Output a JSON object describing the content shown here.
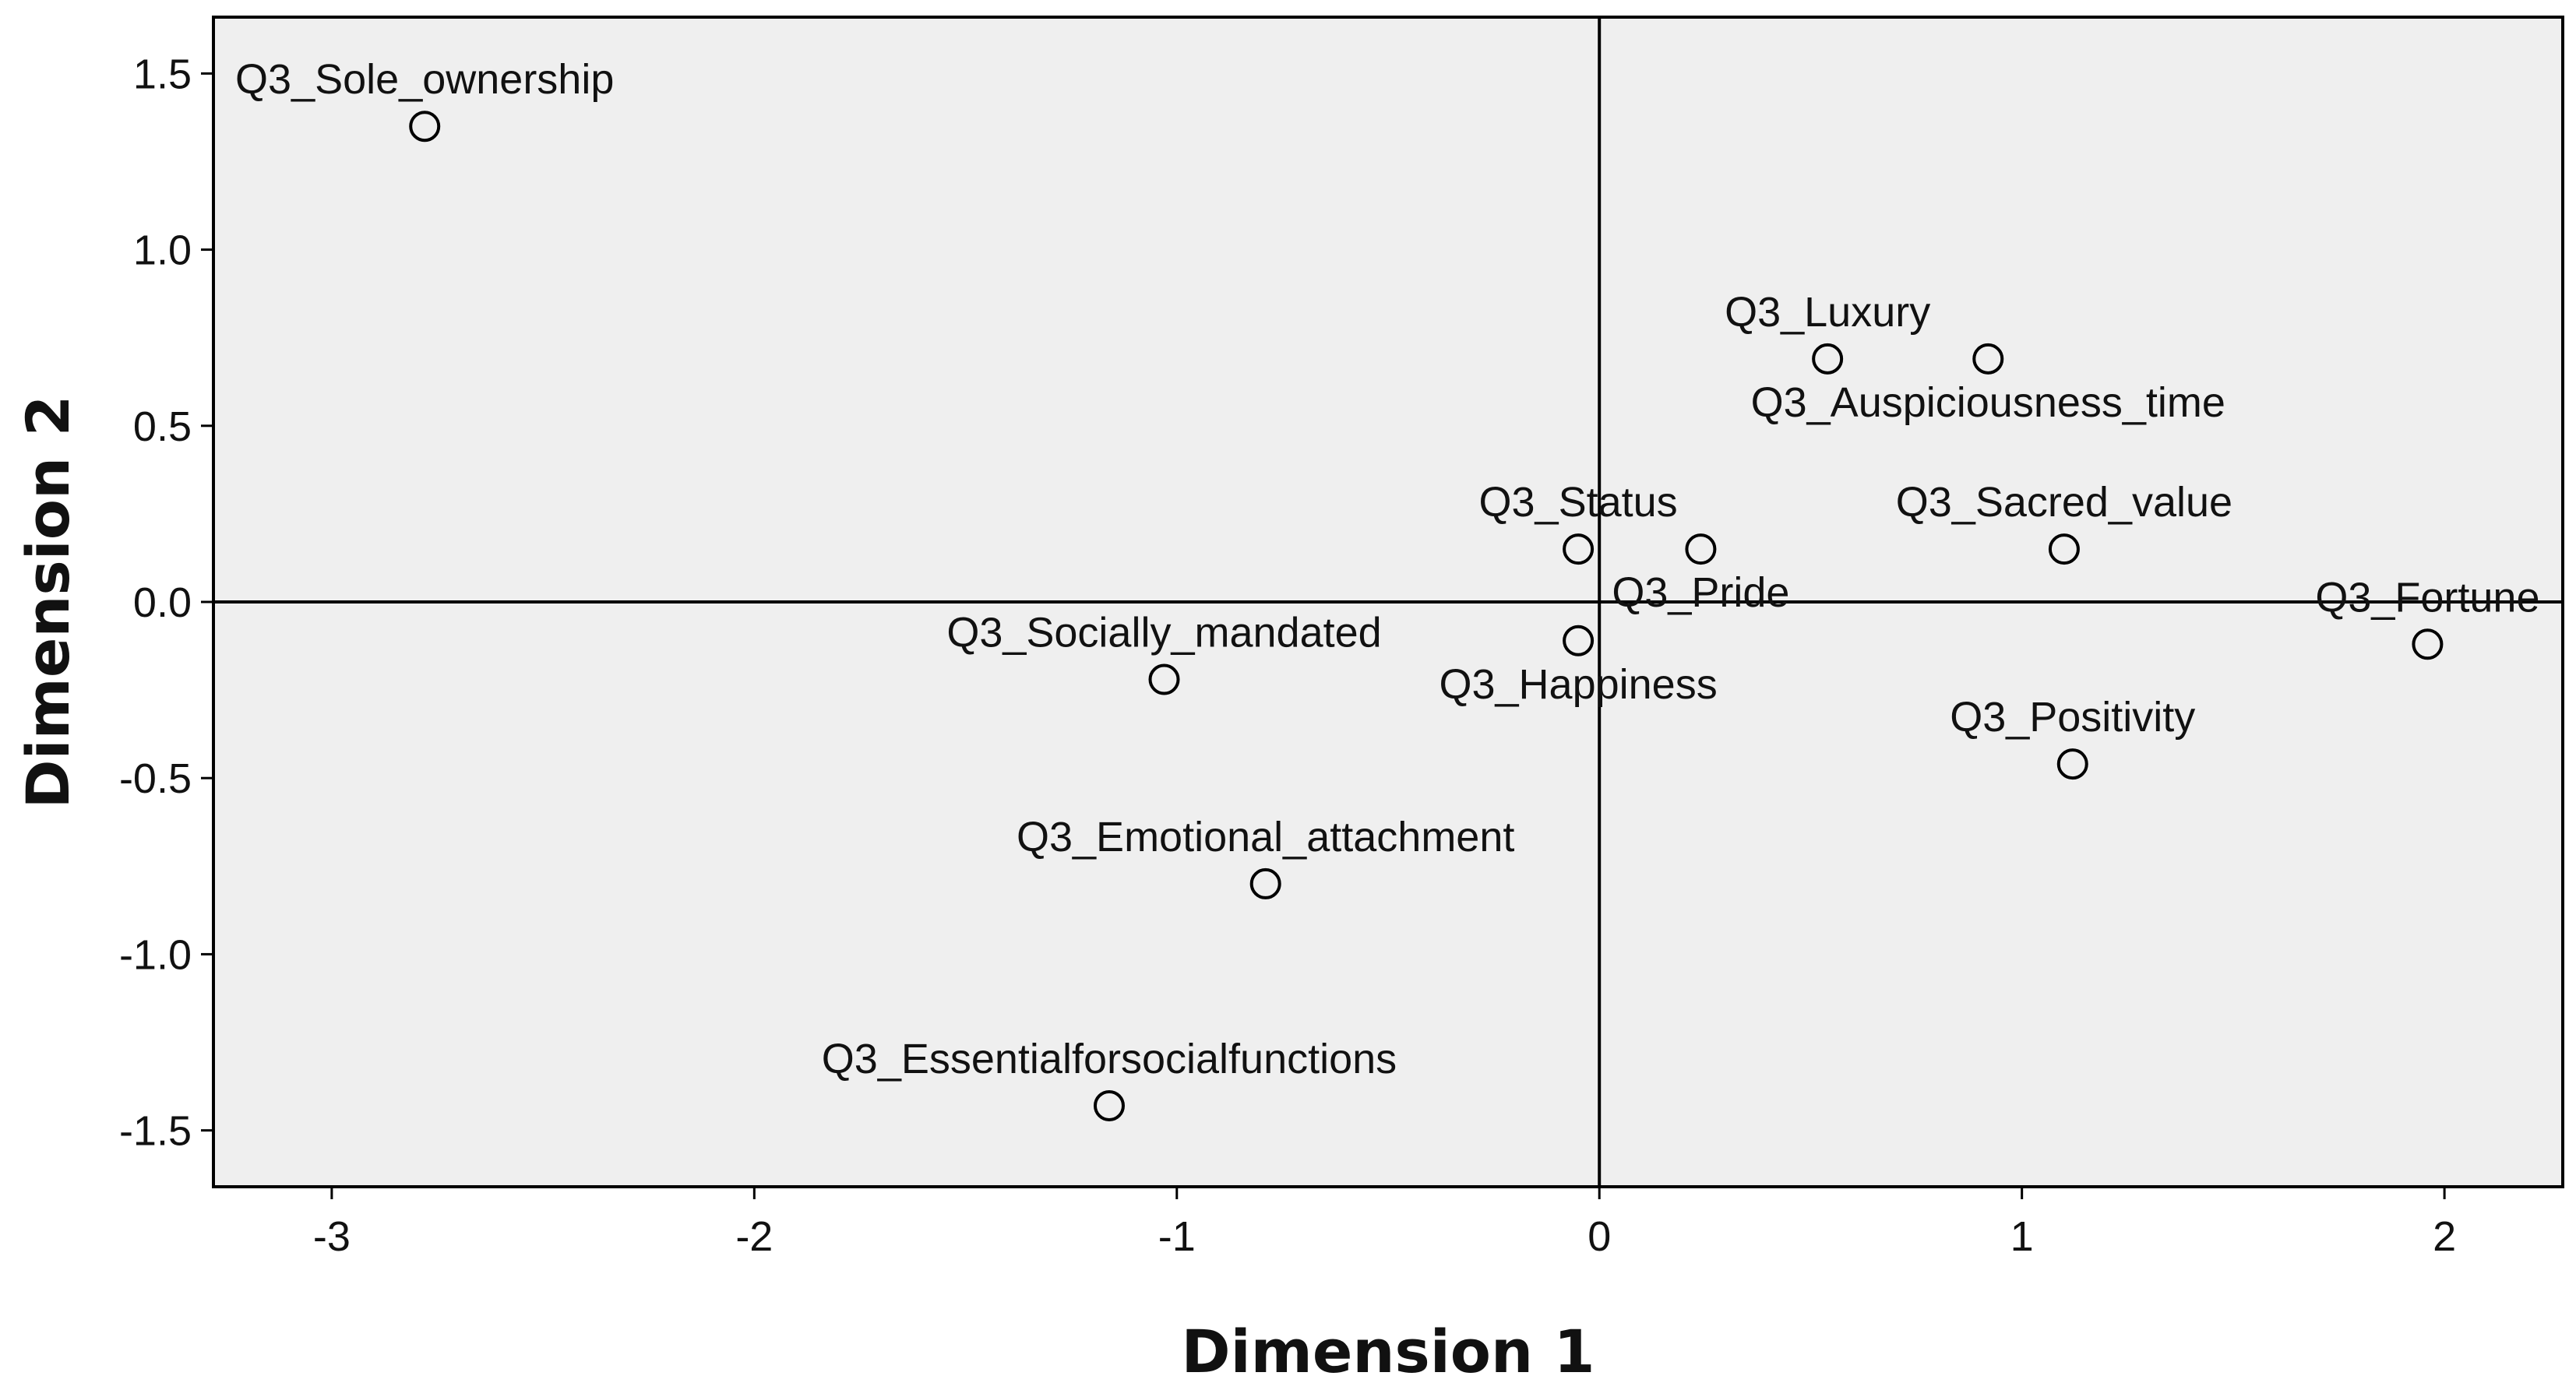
{
  "chart_data": {
    "type": "scatter",
    "title": "",
    "xlabel": "Dimension 1",
    "ylabel": "Dimension 2",
    "xlim": [
      -3.28,
      2.28
    ],
    "ylim": [
      -1.66,
      1.66
    ],
    "xticks": [
      {
        "value": -3,
        "label": "-3"
      },
      {
        "value": -2,
        "label": "-2"
      },
      {
        "value": -1,
        "label": "-1"
      },
      {
        "value": 0,
        "label": "0"
      },
      {
        "value": 1,
        "label": "1"
      },
      {
        "value": 2,
        "label": "2"
      }
    ],
    "yticks": [
      {
        "value": 1.5,
        "label": "1.5"
      },
      {
        "value": 1.0,
        "label": "1.0"
      },
      {
        "value": 0.5,
        "label": "0.5"
      },
      {
        "value": 0.0,
        "label": "0.0"
      },
      {
        "value": -0.5,
        "label": "-0.5"
      },
      {
        "value": -1.0,
        "label": "-1.0"
      },
      {
        "value": -1.5,
        "label": "-1.5"
      }
    ],
    "grid": false,
    "reference_lines": {
      "x": 0,
      "y": 0
    },
    "points": [
      {
        "label": "Q3_Sole_ownership",
        "x": -2.78,
        "y": 1.35,
        "label_pos": "above"
      },
      {
        "label": "Q3_Luxury",
        "x": 0.54,
        "y": 0.69,
        "label_pos": "above"
      },
      {
        "label": "Q3_Auspiciousness_time",
        "x": 0.92,
        "y": 0.69,
        "label_pos": "below"
      },
      {
        "label": "Q3_Status",
        "x": -0.05,
        "y": 0.15,
        "label_pos": "above"
      },
      {
        "label": "Q3_Pride",
        "x": 0.24,
        "y": 0.15,
        "label_pos": "below"
      },
      {
        "label": "Q3_Sacred_value",
        "x": 1.1,
        "y": 0.15,
        "label_pos": "above"
      },
      {
        "label": "Q3_Fortune",
        "x": 1.96,
        "y": -0.12,
        "label_pos": "above"
      },
      {
        "label": "Q3_Socially_mandated",
        "x": -1.03,
        "y": -0.22,
        "label_pos": "above"
      },
      {
        "label": "Q3_Happiness",
        "x": -0.05,
        "y": -0.11,
        "label_pos": "below"
      },
      {
        "label": "Q3_Positivity",
        "x": 1.12,
        "y": -0.46,
        "label_pos": "above"
      },
      {
        "label": "Q3_Emotional_attachment",
        "x": -0.79,
        "y": -0.8,
        "label_pos": "above"
      },
      {
        "label": "Q3_Essentialforsocialfunctions",
        "x": -1.16,
        "y": -1.43,
        "label_pos": "above"
      }
    ],
    "colors": {
      "plot_background": "#efefef",
      "frame": "#000000",
      "marker": "#000000",
      "reference_line": "#000000"
    }
  }
}
